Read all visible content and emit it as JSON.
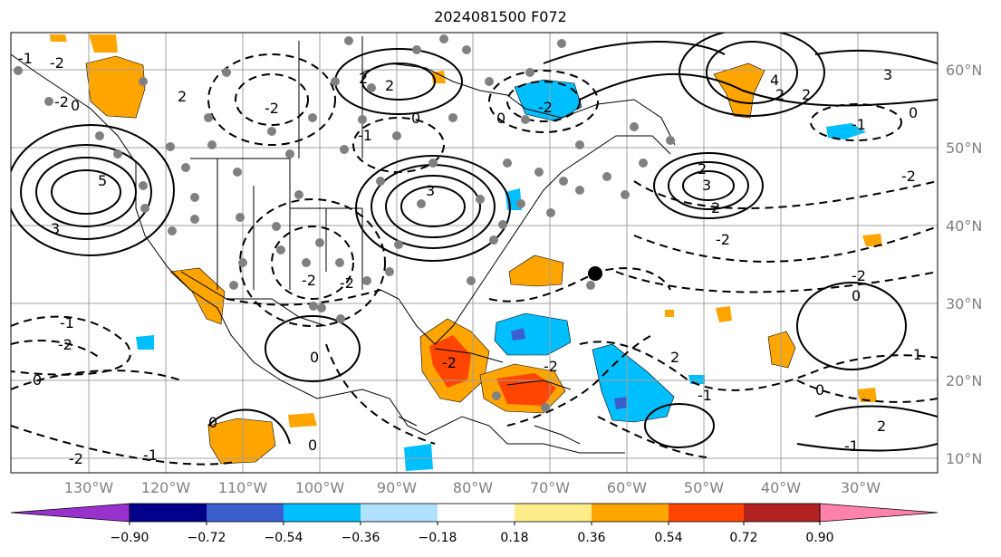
{
  "title": "2024081500 F072",
  "map": {
    "lon_labels": [
      "130°W",
      "120°W",
      "110°W",
      "100°W",
      "90°W",
      "80°W",
      "70°W",
      "60°W",
      "50°W",
      "40°W",
      "30°W"
    ],
    "lat_labels": [
      "60°N",
      "50°N",
      "40°N",
      "30°N",
      "20°N",
      "10°N"
    ],
    "contour_labels": [
      "-1",
      "-2",
      "-2",
      "0",
      "5",
      "3",
      "2",
      "2",
      "-2",
      "0",
      "3",
      "2",
      "-2",
      "-1",
      "-2",
      "0",
      "4",
      "3",
      "2",
      "2",
      "-1",
      "0",
      "-2",
      "-2",
      "2",
      "3",
      "2",
      "-2",
      "-2",
      "0",
      "-1",
      "0",
      "0",
      "0",
      "-2",
      "-2",
      "-1",
      "0",
      "2",
      "-1",
      "0",
      "-1",
      "2",
      "-2",
      "-1",
      "-2"
    ],
    "grid": true,
    "marker_colors": {
      "gray_dots": "#808080",
      "black_dot": "#000000"
    }
  },
  "colorbar": {
    "ticks": [
      "−0.90",
      "−0.72",
      "−0.54",
      "−0.36",
      "−0.18",
      "0.18",
      "0.36",
      "0.54",
      "0.72",
      "0.90"
    ],
    "colors": [
      "#9932cc",
      "#00008b",
      "#3a5fcd",
      "#00bfff",
      "#b0e2ff",
      "#ffffff",
      "#ffec8b",
      "#ffa500",
      "#ff4500",
      "#b22222",
      "#ff82ab"
    ],
    "extend": "both"
  }
}
